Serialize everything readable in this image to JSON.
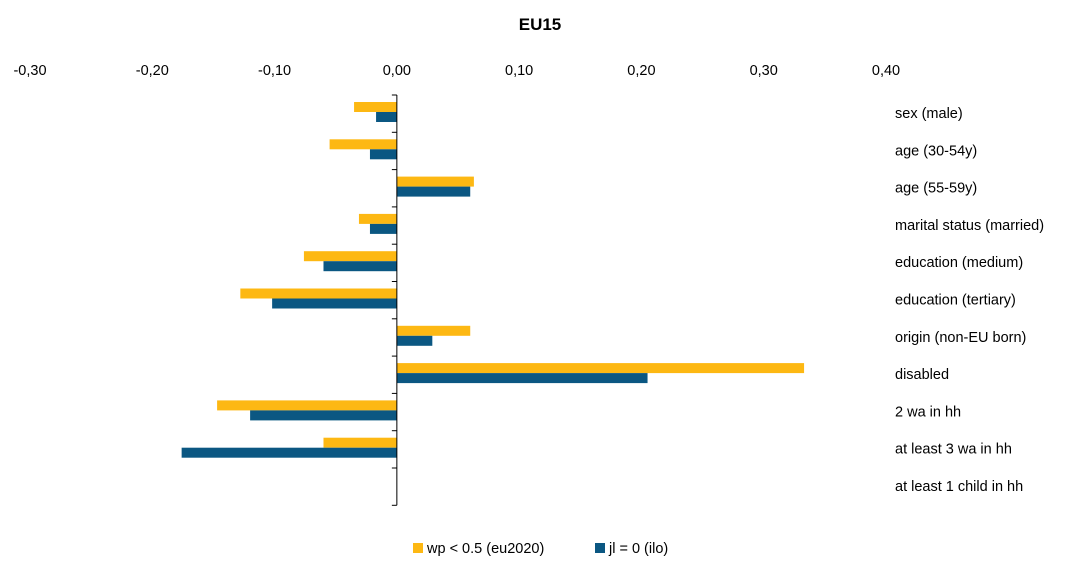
{
  "chart_data": {
    "type": "bar",
    "orientation": "horizontal",
    "title": "EU15",
    "xlabel": "",
    "ylabel": "",
    "xlim": [
      -0.3,
      0.4
    ],
    "x_ticks": [
      "-0,30",
      "-0,20",
      "-0,10",
      "0,00",
      "0,10",
      "0,20",
      "0,30",
      "0,40"
    ],
    "x_tick_values": [
      -0.3,
      -0.2,
      -0.1,
      0.0,
      0.1,
      0.2,
      0.3,
      0.4
    ],
    "categories": [
      "sex (male)",
      "age (30-54y)",
      "age (55-59y)",
      "marital status (married)",
      "education (medium)",
      "education (tertiary)",
      "origin (non-EU born)",
      "disabled",
      "2 wa in hh",
      "at least 3 wa in hh",
      "at least 1 child in hh"
    ],
    "series": [
      {
        "name": "wp < 0.5 (eu2020)",
        "color": "#FDB813",
        "values": [
          -0.035,
          -0.055,
          0.063,
          -0.031,
          -0.076,
          -0.128,
          0.06,
          0.333,
          -0.147,
          -0.06,
          null
        ]
      },
      {
        "name": "jl = 0 (ilo)",
        "color": "#0B5782",
        "values": [
          -0.017,
          -0.022,
          0.06,
          -0.022,
          -0.06,
          -0.102,
          0.029,
          0.205,
          -0.12,
          -0.176,
          null
        ]
      }
    ],
    "grid": false,
    "legend_position": "bottom-center",
    "category_label_position": "right"
  }
}
